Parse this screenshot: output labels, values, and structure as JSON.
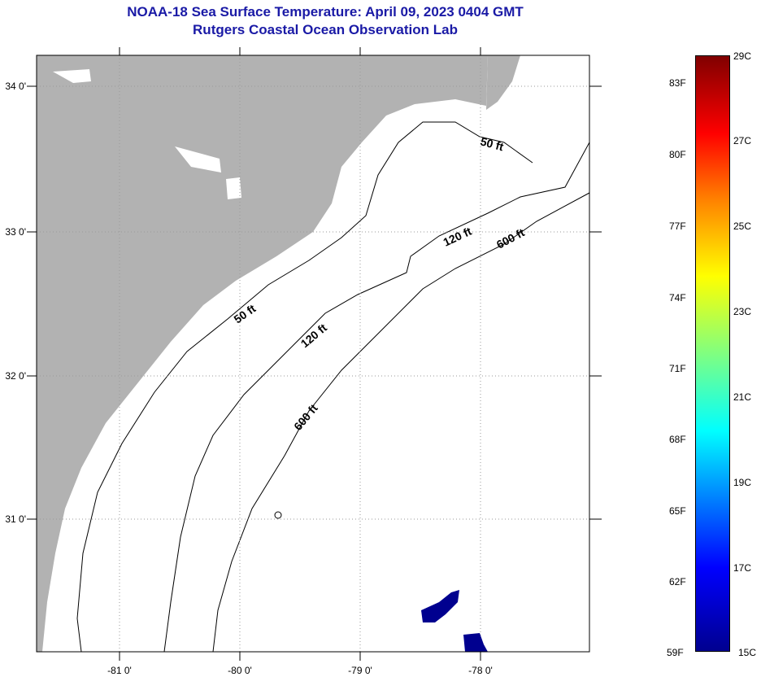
{
  "title": {
    "line1": "NOAA-18 Sea Surface Temperature:  April 09, 2023 0404 GMT",
    "line2": "Rutgers Coastal Ocean Observation Lab"
  },
  "map": {
    "lon_labels": [
      "-81 0'",
      "-80 0'",
      "-79 0'",
      "-78 0'"
    ],
    "lat_labels": [
      "34 0'",
      "33 0'",
      "32 0'",
      "31 0'"
    ],
    "contour_labels": {
      "c50a": "50 ft",
      "c50b": "50 ft",
      "c120a": "120 ft",
      "c120b": "120 ft",
      "c600a": "600 ft",
      "c600b": "600 ft"
    },
    "colors": {
      "land": "#b2b2b2",
      "sst_patch": "#00008f"
    }
  },
  "colorbar": {
    "f_labels": [
      "83F",
      "80F",
      "77F",
      "74F",
      "71F",
      "68F",
      "65F",
      "62F",
      "59F"
    ],
    "c_labels": [
      "29C",
      "27C",
      "25C",
      "23C",
      "21C",
      "19C",
      "17C",
      "15C"
    ]
  }
}
